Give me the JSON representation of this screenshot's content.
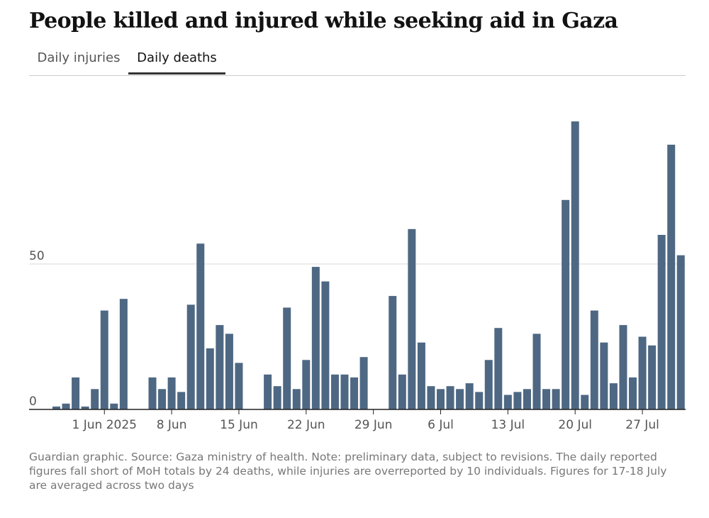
{
  "title": "People killed and injured while seeking aid in Gaza",
  "tabs": [
    {
      "label": "Daily injuries",
      "active": false
    },
    {
      "label": "Daily deaths",
      "active": true
    }
  ],
  "colors": {
    "bar": "#4e6883",
    "grid": "#d9d9d9",
    "axis": "#222222"
  },
  "chart_data": {
    "type": "bar",
    "title": "Daily deaths",
    "xlabel": "",
    "ylabel": "",
    "ylim": [
      0,
      100
    ],
    "y_ticks": [
      0,
      50
    ],
    "x_start": "27 May 2025",
    "x_tick_labels": [
      {
        "index": 5,
        "label": "1 Jun 2025"
      },
      {
        "index": 12,
        "label": "8 Jun"
      },
      {
        "index": 19,
        "label": "15 Jun"
      },
      {
        "index": 26,
        "label": "22 Jun"
      },
      {
        "index": 33,
        "label": "29 Jun"
      },
      {
        "index": 40,
        "label": "6 Jul"
      },
      {
        "index": 47,
        "label": "13 Jul"
      },
      {
        "index": 54,
        "label": "20 Jul"
      },
      {
        "index": 61,
        "label": "27 Jul"
      }
    ],
    "values": [
      1,
      2,
      11,
      1,
      7,
      34,
      2,
      38,
      0,
      0,
      11,
      7,
      11,
      6,
      36,
      57,
      21,
      29,
      26,
      16,
      0,
      0,
      12,
      8,
      35,
      7,
      17,
      49,
      44,
      12,
      12,
      11,
      18,
      0,
      0,
      39,
      12,
      62,
      23,
      8,
      7,
      8,
      7,
      9,
      6,
      17,
      28,
      5,
      6,
      7,
      26,
      7,
      7,
      72,
      99,
      5,
      34,
      23,
      9,
      29,
      11,
      25,
      22,
      60,
      91,
      53
    ]
  },
  "note": "Guardian graphic. Source: Gaza ministry of health. Note: preliminary data, subject to revisions. The daily reported figures fall short of MoH totals by 24 deaths, while injuries are overreported by 10 individuals. Figures for 17-18 July are averaged across two days"
}
